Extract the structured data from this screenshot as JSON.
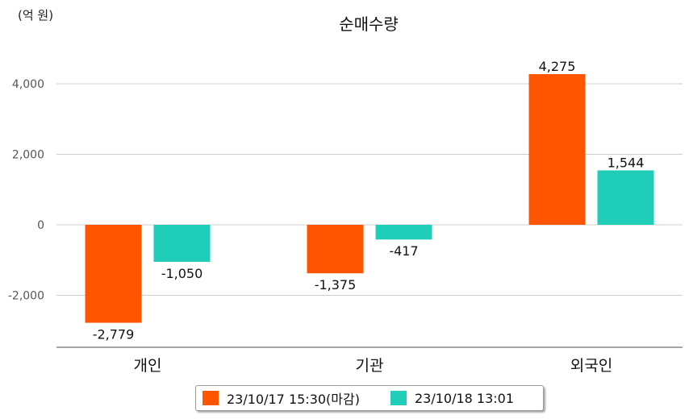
{
  "chart_data": {
    "type": "bar",
    "title": "순매수량",
    "unit_label": "(억 원)",
    "categories": [
      "개인",
      "기관",
      "외국인"
    ],
    "series": [
      {
        "name": "23/10/17 15:30(마감)",
        "color": "#ff5500",
        "values": [
          -2779,
          -1375,
          4275
        ]
      },
      {
        "name": "23/10/18 13:01",
        "color": "#1fcdb9",
        "values": [
          -1050,
          -417,
          1544
        ]
      }
    ],
    "data_labels": [
      [
        "-2,779",
        "-1,375",
        "4,275"
      ],
      [
        "-1,050",
        "-417",
        "1,544"
      ]
    ],
    "yticks": [
      {
        "value": 4000,
        "label": "4,000"
      },
      {
        "value": 2000,
        "label": "2,000"
      },
      {
        "value": 0,
        "label": "0"
      },
      {
        "value": -2000,
        "label": "-2,000"
      }
    ],
    "ylim": [
      -3500,
      5000
    ],
    "grid": true,
    "legend_position": "bottom-center"
  }
}
